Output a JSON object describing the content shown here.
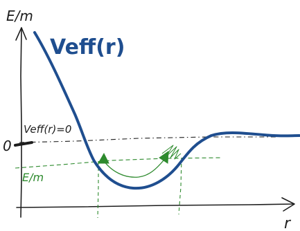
{
  "diagram": {
    "y_axis_label": "E/m",
    "x_axis_label": "r",
    "curve_label": "Veff(r)",
    "zero_line_label": "Veff(r)=0",
    "zero_marker_label": "0",
    "energy_label": "E/m"
  },
  "colors": {
    "axis": "#1d1d1d",
    "potential_curve": "#1f4e8f",
    "energy_level": "#2d8a2d",
    "zero_line": "#1d1d1d"
  }
}
